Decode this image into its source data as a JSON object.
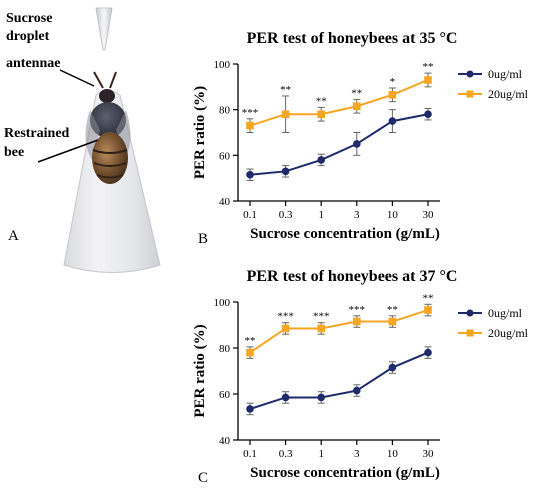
{
  "panel_a": {
    "letter": "A",
    "labels": {
      "droplet": [
        "Sucrose",
        "droplet"
      ],
      "antennae": "antennae",
      "bee": [
        "Restrained",
        "bee"
      ]
    }
  },
  "chart_data": [
    {
      "type": "line",
      "panel_letter": "B",
      "title": "PER test of honeybees at 35 °C",
      "xlabel": "Sucrose concentration (g/mL)",
      "ylabel": "PER ratio (%)",
      "categories": [
        "0.1",
        "0.3",
        "1",
        "3",
        "10",
        "30"
      ],
      "ylim": [
        40,
        100
      ],
      "yticks": [
        40,
        60,
        80,
        100
      ],
      "legend_position": "right",
      "series": [
        {
          "name": "0ug/ml",
          "color": "#1f2a6b",
          "marker": "circle",
          "values": [
            51.5,
            53,
            58,
            65,
            75,
            78
          ],
          "errors": [
            2.5,
            2.5,
            2.5,
            5,
            5,
            2.5
          ]
        },
        {
          "name": "20ug/ml",
          "color": "#f5a623",
          "marker": "square",
          "values": [
            73,
            78,
            78,
            81.5,
            86.5,
            93
          ],
          "errors": [
            3,
            8,
            3,
            3,
            3,
            3
          ]
        }
      ],
      "annotations": [
        "***",
        "**",
        "**",
        "**",
        "*",
        "**"
      ]
    },
    {
      "type": "line",
      "panel_letter": "C",
      "title": "PER test of honeybees at 37 °C",
      "xlabel": "Sucrose concentration (g/mL)",
      "ylabel": "PER ratio (%)",
      "categories": [
        "0.1",
        "0.3",
        "1",
        "3",
        "10",
        "30"
      ],
      "ylim": [
        40,
        100
      ],
      "yticks": [
        40,
        60,
        80,
        100
      ],
      "legend_position": "right",
      "series": [
        {
          "name": "0ug/ml",
          "color": "#1f2a6b",
          "marker": "circle",
          "values": [
            53.5,
            58.5,
            58.5,
            61.5,
            71.5,
            78
          ],
          "errors": [
            2.5,
            2.5,
            2.5,
            2.5,
            2.5,
            2.5
          ]
        },
        {
          "name": "20ug/ml",
          "color": "#f5a623",
          "marker": "square",
          "values": [
            78,
            88.5,
            88.5,
            91.5,
            91.5,
            96.5
          ],
          "errors": [
            2.5,
            2.5,
            2.5,
            2.5,
            2.5,
            2.5
          ]
        }
      ],
      "annotations": [
        "**",
        "***",
        "***",
        "***",
        "**",
        "**"
      ]
    }
  ]
}
